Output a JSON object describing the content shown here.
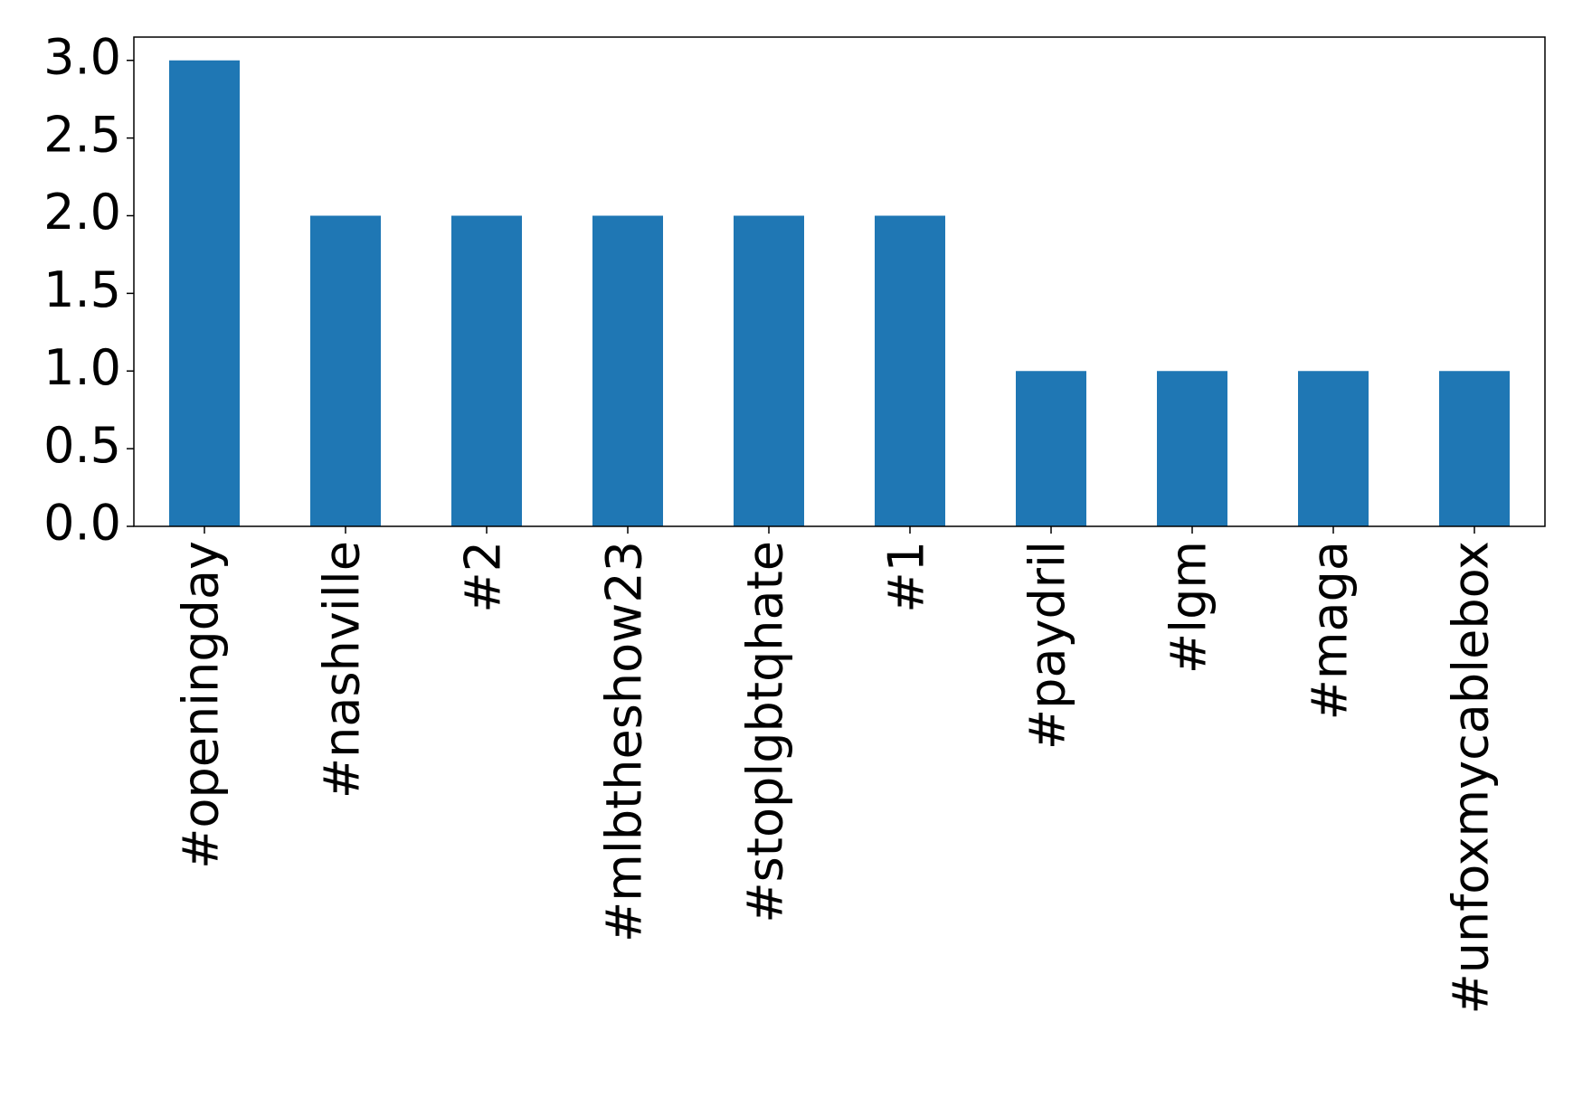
{
  "chart_data": {
    "type": "bar",
    "categories": [
      "#openingday",
      "#nashville",
      "#2",
      "#mlbtheshow23",
      "#stoplgbtqhate",
      "#1",
      "#paydril",
      "#lgm",
      "#maga",
      "#unfoxmycablebox"
    ],
    "values": [
      3,
      2,
      2,
      2,
      2,
      2,
      1,
      1,
      1,
      1
    ],
    "color": "#1f77b4",
    "ylim": [
      0,
      3.15
    ],
    "yticks": [
      {
        "value": 0,
        "label": "0.0"
      },
      {
        "value": 0.5,
        "label": "0.5"
      },
      {
        "value": 1,
        "label": "1.0"
      },
      {
        "value": 1.5,
        "label": "1.5"
      },
      {
        "value": 2,
        "label": "2.0"
      },
      {
        "value": 2.5,
        "label": "2.5"
      },
      {
        "value": 3,
        "label": "3.0"
      }
    ],
    "grid": false
  }
}
